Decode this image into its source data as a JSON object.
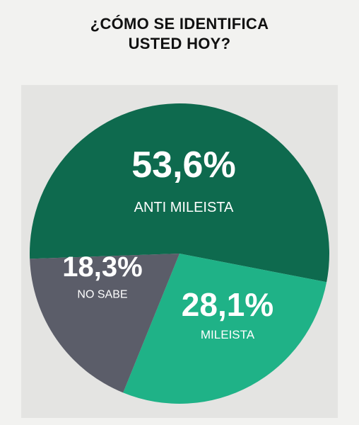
{
  "chart_data": {
    "type": "pie",
    "title": "¿CÓMO SE IDENTIFICA USTED HOY?",
    "categories": [
      "ANTI MILEISTA",
      "MILEISTA",
      "NO SABE"
    ],
    "values": [
      53.6,
      28.1,
      18.3
    ],
    "value_labels": [
      "53,6%",
      "28,1%",
      "18,3%"
    ],
    "colors": [
      "#0e6a4e",
      "#1fb287",
      "#5b5d69"
    ]
  }
}
